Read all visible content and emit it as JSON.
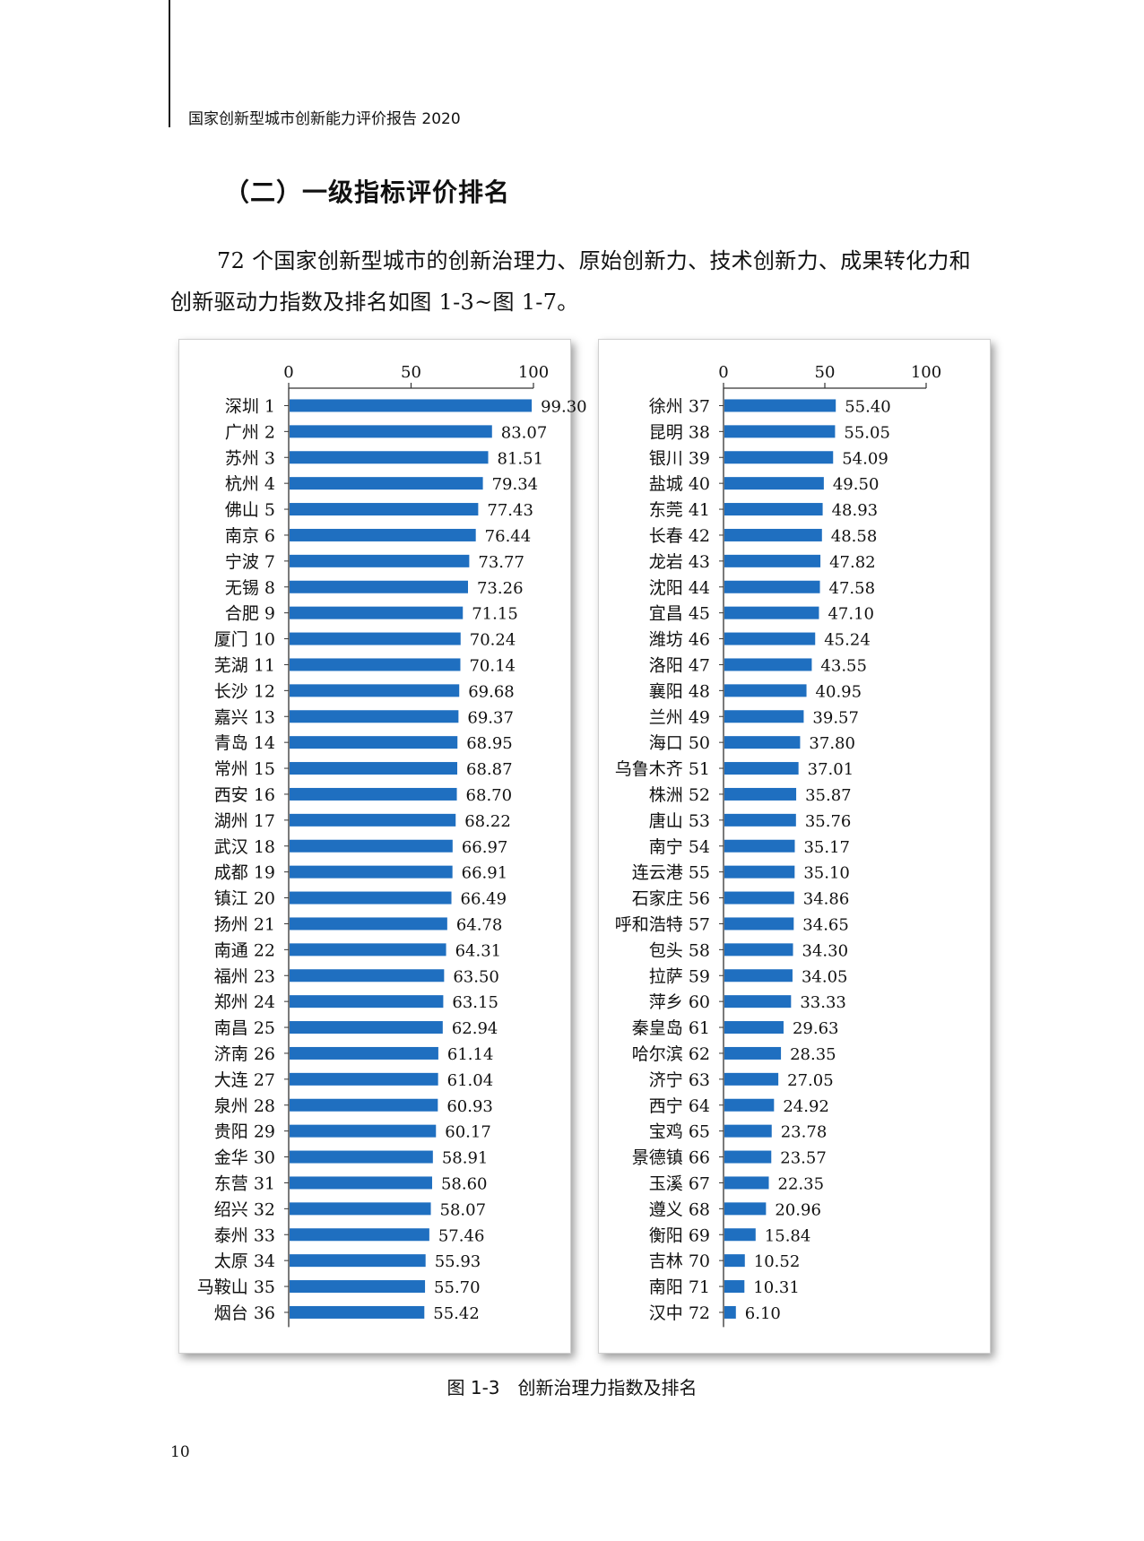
{
  "running_header": "国家创新型城市创新能力评价报告 2020",
  "section_title": "（二）一级指标评价排名",
  "paragraph": "72 个国家创新型城市的创新治理力、原始创新力、技术创新力、成果转化力和创新驱动力指数及排名如图 1-3~图 1-7。",
  "figure_caption": "图 1-3　创新治理力指数及排名",
  "page_number": "10",
  "colors": {
    "bar": "#1f6fc0",
    "axis": "#333333"
  },
  "chart_data": [
    {
      "type": "bar",
      "orientation": "horizontal",
      "xlim": [
        0,
        100
      ],
      "xticks": [
        0,
        50,
        100
      ],
      "categories": [
        "深圳 1",
        "广州 2",
        "苏州 3",
        "杭州 4",
        "佛山 5",
        "南京 6",
        "宁波 7",
        "无锡 8",
        "合肥 9",
        "厦门 10",
        "芜湖 11",
        "长沙 12",
        "嘉兴 13",
        "青岛 14",
        "常州 15",
        "西安 16",
        "湖州 17",
        "武汉 18",
        "成都 19",
        "镇江 20",
        "扬州 21",
        "南通 22",
        "福州 23",
        "郑州 24",
        "南昌 25",
        "济南 26",
        "大连 27",
        "泉州 28",
        "贵阳 29",
        "金华 30",
        "东营 31",
        "绍兴 32",
        "泰州 33",
        "太原 34",
        "马鞍山 35",
        "烟台 36"
      ],
      "values": [
        99.3,
        83.07,
        81.51,
        79.34,
        77.43,
        76.44,
        73.77,
        73.26,
        71.15,
        70.24,
        70.14,
        69.68,
        69.37,
        68.95,
        68.87,
        68.7,
        68.22,
        66.97,
        66.91,
        66.49,
        64.78,
        64.31,
        63.5,
        63.15,
        62.94,
        61.14,
        61.04,
        60.93,
        60.17,
        58.91,
        58.6,
        58.07,
        57.46,
        55.93,
        55.7,
        55.42
      ],
      "value_labels": [
        "99.30",
        "83.07",
        "81.51",
        "79.34",
        "77.43",
        "76.44",
        "73.77",
        "73.26",
        "71.15",
        "70.24",
        "70.14",
        "69.68",
        "69.37",
        "68.95",
        "68.87",
        "68.70",
        "68.22",
        "66.97",
        "66.91",
        "66.49",
        "64.78",
        "64.31",
        "63.50",
        "63.15",
        "62.94",
        "61.14",
        "61.04",
        "60.93",
        "60.17",
        "58.91",
        "58.60",
        "58.07",
        "57.46",
        "55.93",
        "55.70",
        "55.42"
      ]
    },
    {
      "type": "bar",
      "orientation": "horizontal",
      "xlim": [
        0,
        100
      ],
      "xticks": [
        0,
        50,
        100
      ],
      "categories": [
        "徐州 37",
        "昆明 38",
        "银川 39",
        "盐城 40",
        "东莞 41",
        "长春 42",
        "龙岩 43",
        "沈阳 44",
        "宜昌 45",
        "潍坊 46",
        "洛阳 47",
        "襄阳 48",
        "兰州 49",
        "海口 50",
        "乌鲁木齐 51",
        "株洲 52",
        "唐山 53",
        "南宁 54",
        "连云港 55",
        "石家庄 56",
        "呼和浩特 57",
        "包头 58",
        "拉萨 59",
        "萍乡 60",
        "秦皇岛 61",
        "哈尔滨 62",
        "济宁 63",
        "西宁 64",
        "宝鸡 65",
        "景德镇 66",
        "玉溪 67",
        "遵义 68",
        "衡阳 69",
        "吉林 70",
        "南阳 71",
        "汉中 72"
      ],
      "values": [
        55.4,
        55.05,
        54.09,
        49.5,
        48.93,
        48.58,
        47.82,
        47.58,
        47.1,
        45.24,
        43.55,
        40.95,
        39.57,
        37.8,
        37.01,
        35.87,
        35.76,
        35.17,
        35.1,
        34.86,
        34.65,
        34.3,
        34.05,
        33.33,
        29.63,
        28.35,
        27.05,
        24.92,
        23.78,
        23.57,
        22.35,
        20.96,
        15.84,
        10.52,
        10.31,
        6.1
      ],
      "value_labels": [
        "55.40",
        "55.05",
        "54.09",
        "49.50",
        "48.93",
        "48.58",
        "47.82",
        "47.58",
        "47.10",
        "45.24",
        "43.55",
        "40.95",
        "39.57",
        "37.80",
        "37.01",
        "35.87",
        "35.76",
        "35.17",
        "35.10",
        "34.86",
        "34.65",
        "34.30",
        "34.05",
        "33.33",
        "29.63",
        "28.35",
        "27.05",
        "24.92",
        "23.78",
        "23.57",
        "22.35",
        "20.96",
        "15.84",
        "10.52",
        "10.31",
        "6.10"
      ]
    }
  ]
}
